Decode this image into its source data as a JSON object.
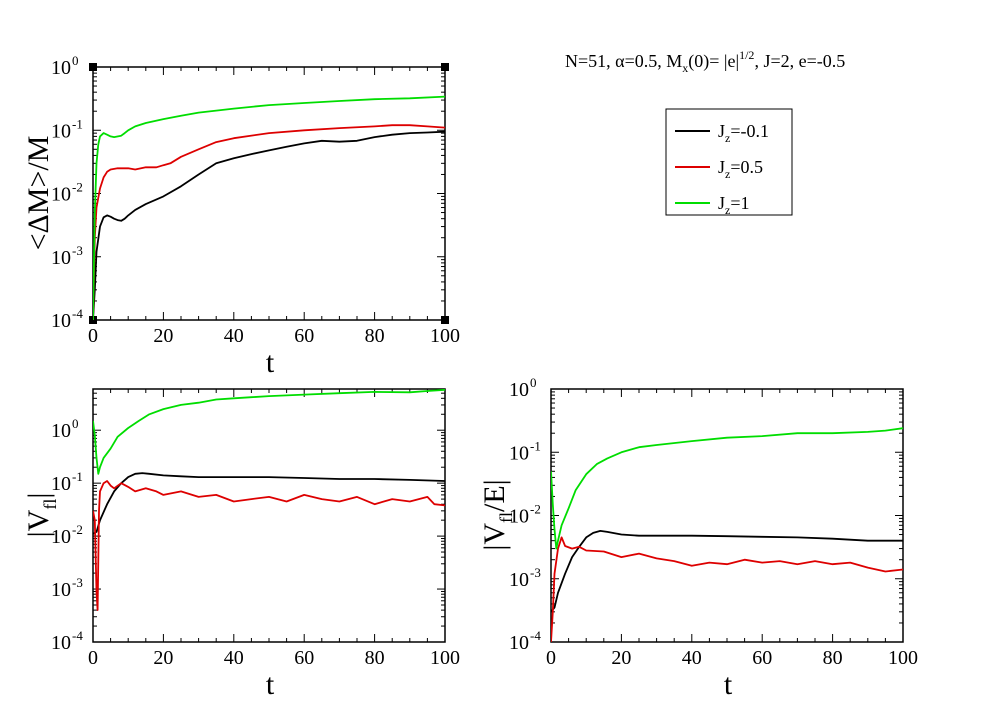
{
  "figure": {
    "header": "N=51, α=0.5, M_x(0)= |e|^1/2, J=2, e=-0.5",
    "header_parts": {
      "a": "N=51, α=0.5, M",
      "a_sub": "x",
      "b": "(0)= |e|",
      "b_sup": "1/2",
      "c": ",  J=2, e=-0.5"
    }
  },
  "colors": {
    "Jz=-0.1": "#000000",
    "Jz=0.5": "#dd0000",
    "Jz=1": "#00dd00"
  },
  "legend": {
    "placement": "right of top panel",
    "items": [
      {
        "pre": "J",
        "sub": "z",
        "post": "=-0.1",
        "color": "#000000"
      },
      {
        "pre": "J",
        "sub": "z",
        "post": "=0.5",
        "color": "#dd0000"
      },
      {
        "pre": "J",
        "sub": "z",
        "post": "=1",
        "color": "#00dd00"
      }
    ]
  },
  "chart_data": [
    {
      "id": "top",
      "type": "line",
      "ylabel": "<ΔM>/M",
      "xlabel": "t",
      "yscale": "log",
      "xlim": [
        0,
        100
      ],
      "ylim": [
        0.0001,
        1
      ],
      "xticks": [
        "0",
        "20",
        "40",
        "60",
        "80",
        "100"
      ],
      "yticks": [
        {
          "base": "10",
          "exp": "-4"
        },
        {
          "base": "10",
          "exp": "-3"
        },
        {
          "base": "10",
          "exp": "-2"
        },
        {
          "base": "10",
          "exp": "-1"
        },
        {
          "base": "10",
          "exp": "0"
        }
      ],
      "series": [
        {
          "name": "Jz=-0.1",
          "color": "#000000",
          "points": [
            [
              0,
              0.0001
            ],
            [
              0.5,
              0.0003
            ],
            [
              1,
              0.0012
            ],
            [
              2,
              0.003
            ],
            [
              3,
              0.0042
            ],
            [
              4,
              0.0045
            ],
            [
              5,
              0.0043
            ],
            [
              6,
              0.004
            ],
            [
              7,
              0.0038
            ],
            [
              8,
              0.0037
            ],
            [
              9,
              0.004
            ],
            [
              10,
              0.0045
            ],
            [
              12,
              0.0055
            ],
            [
              15,
              0.0068
            ],
            [
              20,
              0.009
            ],
            [
              25,
              0.013
            ],
            [
              30,
              0.02
            ],
            [
              35,
              0.03
            ],
            [
              40,
              0.036
            ],
            [
              45,
              0.042
            ],
            [
              50,
              0.048
            ],
            [
              55,
              0.055
            ],
            [
              60,
              0.062
            ],
            [
              65,
              0.068
            ],
            [
              70,
              0.066
            ],
            [
              75,
              0.068
            ],
            [
              80,
              0.078
            ],
            [
              85,
              0.085
            ],
            [
              90,
              0.09
            ],
            [
              95,
              0.092
            ],
            [
              100,
              0.095
            ]
          ]
        },
        {
          "name": "Jz=0.5",
          "color": "#dd0000",
          "points": [
            [
              0,
              0.0001
            ],
            [
              0.5,
              0.002
            ],
            [
              1,
              0.006
            ],
            [
              2,
              0.012
            ],
            [
              3,
              0.018
            ],
            [
              4,
              0.022
            ],
            [
              5,
              0.024
            ],
            [
              7,
              0.025
            ],
            [
              10,
              0.025
            ],
            [
              12,
              0.024
            ],
            [
              15,
              0.026
            ],
            [
              18,
              0.026
            ],
            [
              20,
              0.028
            ],
            [
              22,
              0.03
            ],
            [
              25,
              0.038
            ],
            [
              30,
              0.05
            ],
            [
              35,
              0.065
            ],
            [
              40,
              0.075
            ],
            [
              50,
              0.09
            ],
            [
              60,
              0.1
            ],
            [
              70,
              0.108
            ],
            [
              80,
              0.115
            ],
            [
              85,
              0.12
            ],
            [
              90,
              0.12
            ],
            [
              95,
              0.115
            ],
            [
              100,
              0.11
            ]
          ]
        },
        {
          "name": "Jz=1",
          "color": "#00dd00",
          "points": [
            [
              0,
              0.0001
            ],
            [
              0.5,
              0.005
            ],
            [
              1,
              0.03
            ],
            [
              1.5,
              0.06
            ],
            [
              2,
              0.08
            ],
            [
              3,
              0.09
            ],
            [
              4,
              0.085
            ],
            [
              5,
              0.08
            ],
            [
              6,
              0.078
            ],
            [
              8,
              0.082
            ],
            [
              9,
              0.09
            ],
            [
              10,
              0.1
            ],
            [
              12,
              0.115
            ],
            [
              15,
              0.13
            ],
            [
              20,
              0.15
            ],
            [
              25,
              0.17
            ],
            [
              30,
              0.19
            ],
            [
              40,
              0.22
            ],
            [
              50,
              0.25
            ],
            [
              60,
              0.27
            ],
            [
              70,
              0.29
            ],
            [
              80,
              0.31
            ],
            [
              90,
              0.32
            ],
            [
              100,
              0.34
            ]
          ]
        }
      ]
    },
    {
      "id": "bottom-left",
      "type": "line",
      "ylabel": "|V_fl|",
      "ylabel_parts": {
        "pre": "|V",
        "sub": "fl",
        "post": "|"
      },
      "xlabel": "t",
      "yscale": "log",
      "xlim": [
        0,
        100
      ],
      "ylim": [
        0.0001,
        6
      ],
      "xticks": [
        "0",
        "20",
        "40",
        "60",
        "80",
        "100"
      ],
      "yticks": [
        {
          "base": "10",
          "exp": "-4"
        },
        {
          "base": "10",
          "exp": "-3"
        },
        {
          "base": "10",
          "exp": "-2"
        },
        {
          "base": "10",
          "exp": "-1"
        },
        {
          "base": "10",
          "exp": "0"
        }
      ],
      "series": [
        {
          "name": "Jz=-0.1",
          "color": "#000000",
          "points": [
            [
              0,
              0.011
            ],
            [
              1,
              0.012
            ],
            [
              2,
              0.02
            ],
            [
              4,
              0.04
            ],
            [
              6,
              0.07
            ],
            [
              8,
              0.1
            ],
            [
              10,
              0.13
            ],
            [
              12,
              0.15
            ],
            [
              14,
              0.155
            ],
            [
              16,
              0.15
            ],
            [
              20,
              0.14
            ],
            [
              25,
              0.135
            ],
            [
              30,
              0.13
            ],
            [
              40,
              0.13
            ],
            [
              50,
              0.13
            ],
            [
              60,
              0.125
            ],
            [
              70,
              0.12
            ],
            [
              80,
              0.12
            ],
            [
              90,
              0.115
            ],
            [
              100,
              0.11
            ]
          ]
        },
        {
          "name": "Jz=0.5",
          "color": "#dd0000",
          "points": [
            [
              0,
              0.03
            ],
            [
              0.5,
              0.02
            ],
            [
              1,
              0.0009
            ],
            [
              1.3,
              0.0004
            ],
            [
              1.7,
              0.03
            ],
            [
              2,
              0.07
            ],
            [
              3,
              0.1
            ],
            [
              4,
              0.11
            ],
            [
              5,
              0.09
            ],
            [
              6,
              0.08
            ],
            [
              8,
              0.1
            ],
            [
              10,
              0.085
            ],
            [
              12,
              0.07
            ],
            [
              15,
              0.08
            ],
            [
              18,
              0.07
            ],
            [
              20,
              0.06
            ],
            [
              25,
              0.07
            ],
            [
              30,
              0.055
            ],
            [
              35,
              0.06
            ],
            [
              40,
              0.045
            ],
            [
              45,
              0.05
            ],
            [
              50,
              0.055
            ],
            [
              55,
              0.045
            ],
            [
              60,
              0.06
            ],
            [
              65,
              0.05
            ],
            [
              70,
              0.045
            ],
            [
              75,
              0.055
            ],
            [
              80,
              0.04
            ],
            [
              85,
              0.05
            ],
            [
              90,
              0.045
            ],
            [
              95,
              0.055
            ],
            [
              97,
              0.04
            ],
            [
              100,
              0.038
            ]
          ]
        },
        {
          "name": "Jz=1",
          "color": "#00dd00",
          "points": [
            [
              0,
              1.5
            ],
            [
              0.5,
              0.8
            ],
            [
              1,
              0.3
            ],
            [
              1.5,
              0.15
            ],
            [
              2,
              0.2
            ],
            [
              3,
              0.3
            ],
            [
              5,
              0.45
            ],
            [
              7,
              0.75
            ],
            [
              10,
              1.1
            ],
            [
              13,
              1.5
            ],
            [
              16,
              2
            ],
            [
              20,
              2.5
            ],
            [
              25,
              3
            ],
            [
              30,
              3.3
            ],
            [
              35,
              3.8
            ],
            [
              40,
              4
            ],
            [
              45,
              4.2
            ],
            [
              50,
              4.4
            ],
            [
              60,
              4.7
            ],
            [
              70,
              5
            ],
            [
              80,
              5.3
            ],
            [
              90,
              5.2
            ],
            [
              95,
              5.5
            ],
            [
              100,
              5.8
            ]
          ]
        }
      ]
    },
    {
      "id": "bottom-right",
      "type": "line",
      "ylabel": "|V_fl/E|",
      "ylabel_parts": {
        "pre": "|V",
        "sub": "fl",
        "post": "/E|"
      },
      "xlabel": "t",
      "yscale": "log",
      "xlim": [
        0,
        100
      ],
      "ylim": [
        0.0001,
        1
      ],
      "xticks": [
        "0",
        "20",
        "40",
        "60",
        "80",
        "100"
      ],
      "yticks": [
        {
          "base": "10",
          "exp": "-4"
        },
        {
          "base": "10",
          "exp": "-3"
        },
        {
          "base": "10",
          "exp": "-2"
        },
        {
          "base": "10",
          "exp": "-1"
        },
        {
          "base": "10",
          "exp": "0"
        }
      ],
      "series": [
        {
          "name": "Jz=-0.1",
          "color": "#000000",
          "points": [
            [
              0,
              0.0003
            ],
            [
              1,
              0.00035
            ],
            [
              2,
              0.0006
            ],
            [
              4,
              0.0012
            ],
            [
              6,
              0.0022
            ],
            [
              8,
              0.0032
            ],
            [
              10,
              0.0045
            ],
            [
              12,
              0.0053
            ],
            [
              14,
              0.0057
            ],
            [
              16,
              0.0055
            ],
            [
              20,
              0.005
            ],
            [
              25,
              0.0048
            ],
            [
              30,
              0.0048
            ],
            [
              40,
              0.0048
            ],
            [
              50,
              0.0047
            ],
            [
              60,
              0.0046
            ],
            [
              70,
              0.0045
            ],
            [
              80,
              0.0043
            ],
            [
              90,
              0.004
            ],
            [
              100,
              0.004
            ]
          ]
        },
        {
          "name": "Jz=0.5",
          "color": "#dd0000",
          "points": [
            [
              0,
              0.0001
            ],
            [
              0.5,
              0.0003
            ],
            [
              1,
              0.0012
            ],
            [
              2,
              0.003
            ],
            [
              3,
              0.0045
            ],
            [
              4,
              0.0033
            ],
            [
              6,
              0.003
            ],
            [
              8,
              0.0032
            ],
            [
              10,
              0.0028
            ],
            [
              15,
              0.0027
            ],
            [
              20,
              0.0022
            ],
            [
              25,
              0.0025
            ],
            [
              30,
              0.0021
            ],
            [
              35,
              0.0019
            ],
            [
              40,
              0.0016
            ],
            [
              45,
              0.0018
            ],
            [
              50,
              0.0017
            ],
            [
              55,
              0.002
            ],
            [
              60,
              0.0018
            ],
            [
              65,
              0.0019
            ],
            [
              70,
              0.0017
            ],
            [
              75,
              0.0019
            ],
            [
              80,
              0.0017
            ],
            [
              85,
              0.0018
            ],
            [
              90,
              0.0015
            ],
            [
              95,
              0.0013
            ],
            [
              100,
              0.0014
            ]
          ]
        },
        {
          "name": "Jz=1",
          "color": "#00dd00",
          "points": [
            [
              0,
              0.05
            ],
            [
              0.5,
              0.015
            ],
            [
              1,
              0.006
            ],
            [
              1.5,
              0.003
            ],
            [
              2,
              0.004
            ],
            [
              3,
              0.007
            ],
            [
              5,
              0.013
            ],
            [
              7,
              0.025
            ],
            [
              10,
              0.045
            ],
            [
              13,
              0.065
            ],
            [
              16,
              0.08
            ],
            [
              20,
              0.1
            ],
            [
              25,
              0.12
            ],
            [
              30,
              0.13
            ],
            [
              40,
              0.15
            ],
            [
              50,
              0.17
            ],
            [
              60,
              0.18
            ],
            [
              70,
              0.2
            ],
            [
              80,
              0.2
            ],
            [
              90,
              0.21
            ],
            [
              95,
              0.22
            ],
            [
              100,
              0.24
            ]
          ]
        }
      ]
    }
  ]
}
